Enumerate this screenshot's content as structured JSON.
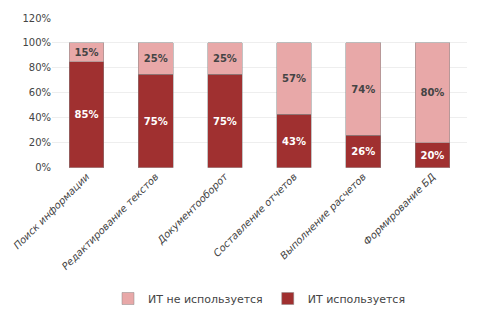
{
  "chart_data": {
    "type": "bar",
    "stacked": true,
    "data_labels": true,
    "grid": true,
    "legend": "bottom",
    "categories": [
      "Поиск информации",
      "Редактирование текстов",
      "Документооборот",
      "Составление отчетов",
      "Выполнение расчетов",
      "Формирование БД"
    ],
    "series": [
      {
        "name": "ИТ используется",
        "color": "#A03030",
        "values": [
          85,
          75,
          75,
          43,
          26,
          20
        ],
        "value_labels": [
          "85%",
          "75%",
          "75%",
          "43%",
          "26%",
          "20%"
        ]
      },
      {
        "name": "ИТ не используется",
        "color": "#E8A8A8",
        "values": [
          15,
          25,
          25,
          57,
          74,
          80
        ],
        "value_labels": [
          "15%",
          "25%",
          "25%",
          "57%",
          "74%",
          "80%"
        ]
      }
    ],
    "ylim": [
      0,
      120
    ],
    "yticks": [
      {
        "value": 0,
        "label": "0%"
      },
      {
        "value": 20,
        "label": "20%"
      },
      {
        "value": 40,
        "label": "40%"
      },
      {
        "value": 60,
        "label": "60%"
      },
      {
        "value": 80,
        "label": "80%"
      },
      {
        "value": 100,
        "label": "100%"
      },
      {
        "value": 120,
        "label": "120%"
      }
    ]
  }
}
